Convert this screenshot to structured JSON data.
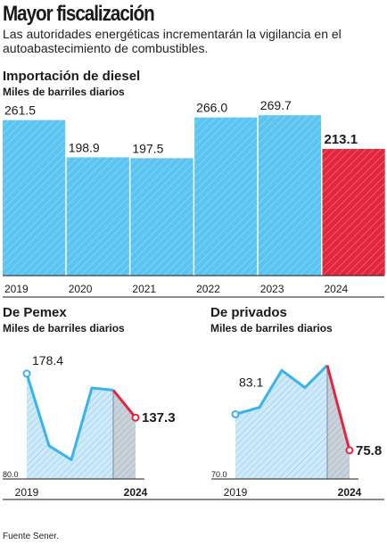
{
  "header": {
    "title": "Mayor fiscalización",
    "subtitle": "Las autoridades energéticas incrementarán la vigilancia en el autoabastecimiento de combustibles."
  },
  "footer": {
    "source": "Fuente Sener."
  },
  "colors": {
    "bar_blue": "#5bc4f1",
    "bar_red": "#e3263d",
    "line_blue": "#38b3ec",
    "area_blue": "#cfe9f8",
    "highlight_red": "#e3263d"
  },
  "chart_data": [
    {
      "type": "bar",
      "title": "Importación de diesel",
      "subtitle": "Miles de barriles diarios",
      "categories": [
        "2019",
        "2020",
        "2021",
        "2022",
        "2023",
        "2024"
      ],
      "values": [
        261.5,
        198.9,
        197.5,
        266.0,
        269.7,
        213.1
      ],
      "value_labels": [
        "261.5",
        "198.9",
        "197.5",
        "266.0",
        "269.7",
        "213.1"
      ],
      "highlight": "2024",
      "ylim": [
        0,
        300
      ]
    },
    {
      "type": "line",
      "title": "De Pemex",
      "subtitle": "Miles de barriles diarios",
      "x": [
        2019,
        2020,
        2021,
        2022,
        2023,
        2024
      ],
      "values": [
        178.4,
        111,
        98,
        165,
        163,
        137.3
      ],
      "tick_labels": [
        "2019",
        "2024"
      ],
      "baseline_label": "80.0",
      "start_label": "178.4",
      "end_label": "137.3",
      "ylim": [
        80,
        200
      ]
    },
    {
      "type": "line",
      "title": "De privados",
      "subtitle": "Miles de barriles diarios",
      "x": [
        2019,
        2020,
        2021,
        2022,
        2023,
        2024
      ],
      "values": [
        83.1,
        84.5,
        92,
        88.5,
        93,
        75.8
      ],
      "tick_labels": [
        "2019",
        "2024"
      ],
      "baseline_label": "70.0",
      "start_label": "83.1",
      "end_label": "75.8",
      "ylim": [
        70,
        96
      ]
    }
  ]
}
